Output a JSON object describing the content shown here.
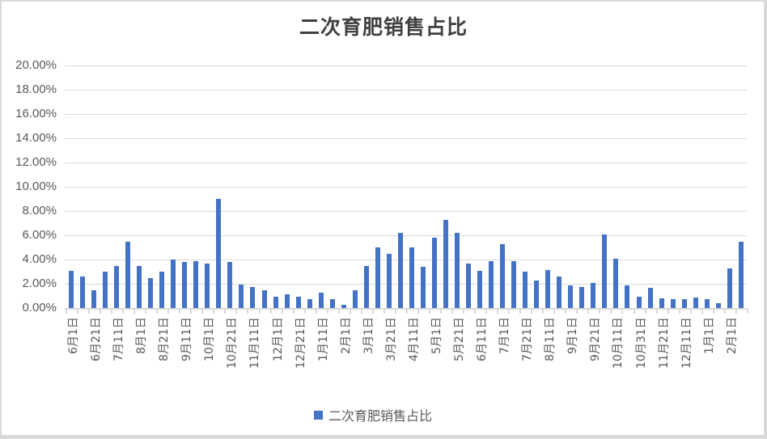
{
  "chart_data": {
    "type": "bar",
    "title": "二次育肥销售占比",
    "xlabel": "",
    "ylabel": "",
    "ylim": [
      0,
      20
    ],
    "y_ticks": [
      "0.00%",
      "2.00%",
      "4.00%",
      "6.00%",
      "8.00%",
      "10.00%",
      "12.00%",
      "14.00%",
      "16.00%",
      "18.00%",
      "20.00%"
    ],
    "grid": true,
    "legend_position": "bottom",
    "x_tick_labels": [
      "6月1日",
      "6月21日",
      "7月11日",
      "8月1日",
      "8月21日",
      "9月11日",
      "10月1日",
      "10月21日",
      "11月11日",
      "12月1日",
      "12月21日",
      "1月11日",
      "2月1日",
      "3月1日",
      "3月21日",
      "4月11日",
      "5月1日",
      "5月21日",
      "6月11日",
      "7月1日",
      "7月21日",
      "8月11日",
      "9月1日",
      "9月21日",
      "10月11日",
      "10月31日",
      "11月21日",
      "12月11日",
      "1月1日",
      "2月1日"
    ],
    "series": [
      {
        "name": "二次育肥销售占比",
        "color": "#4472c4",
        "values": [
          3.07,
          2.6,
          1.47,
          3.0,
          3.47,
          5.47,
          3.47,
          2.47,
          3.0,
          4.0,
          3.8,
          3.87,
          3.67,
          9.0,
          3.8,
          1.93,
          1.73,
          1.47,
          0.93,
          1.13,
          0.93,
          0.73,
          1.27,
          0.73,
          0.27,
          1.47,
          3.47,
          5.0,
          4.47,
          6.2,
          5.0,
          3.4,
          5.8,
          7.27,
          6.2,
          3.67,
          3.07,
          3.87,
          5.27,
          3.87,
          3.0,
          2.27,
          3.13,
          2.6,
          1.87,
          1.73,
          2.07,
          6.07,
          4.07,
          1.87,
          0.93,
          1.67,
          0.8,
          0.73,
          0.73,
          0.87,
          0.73,
          0.4,
          3.27,
          5.47
        ]
      }
    ]
  },
  "legend": {
    "label": "二次育肥销售占比"
  }
}
